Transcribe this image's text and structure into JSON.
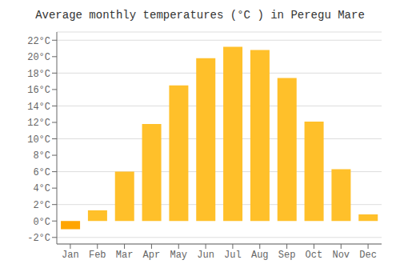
{
  "chart_data": {
    "type": "bar",
    "title": "Average monthly temperatures (°C ) in Peregu Mare",
    "categories": [
      "Jan",
      "Feb",
      "Mar",
      "Apr",
      "May",
      "Jun",
      "Jul",
      "Aug",
      "Sep",
      "Oct",
      "Nov",
      "Dec"
    ],
    "values": [
      -1.0,
      1.3,
      6.0,
      11.8,
      16.5,
      19.8,
      21.2,
      20.8,
      17.4,
      12.1,
      6.3,
      0.8
    ],
    "colors": [
      "#FFA500",
      "#FFC02A",
      "#FFC02A",
      "#FFC02A",
      "#FFC02A",
      "#FFC02A",
      "#FFC02A",
      "#FFC02A",
      "#FFC02A",
      "#FFC02A",
      "#FFC02A",
      "#FFC02A"
    ],
    "ylim": [
      -2.8,
      23
    ],
    "yticks": [
      {
        "value": -2,
        "label": "-2°C"
      },
      {
        "value": 0,
        "label": "0°C"
      },
      {
        "value": 2,
        "label": "2°C"
      },
      {
        "value": 4,
        "label": "4°C"
      },
      {
        "value": 6,
        "label": "6°C"
      },
      {
        "value": 8,
        "label": "8°C"
      },
      {
        "value": 10,
        "label": "10°C"
      },
      {
        "value": 12,
        "label": "12°C"
      },
      {
        "value": 14,
        "label": "14°C"
      },
      {
        "value": 16,
        "label": "16°C"
      },
      {
        "value": 18,
        "label": "18°C"
      },
      {
        "value": 20,
        "label": "20°C"
      },
      {
        "value": 22,
        "label": "22°C"
      }
    ],
    "grid": true
  }
}
